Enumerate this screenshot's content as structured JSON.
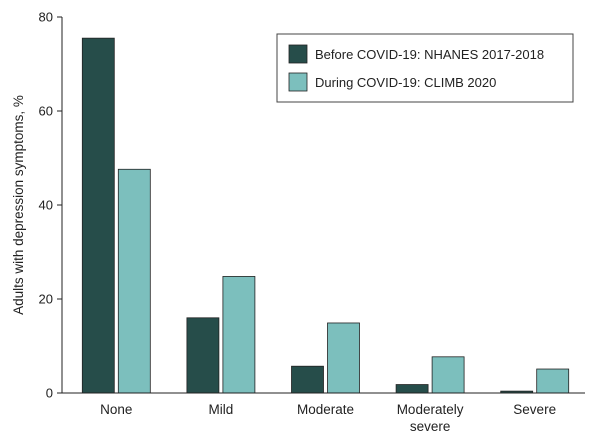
{
  "chart_data": {
    "type": "bar",
    "title": "",
    "xlabel": "",
    "ylabel": "Adults with depression symptoms, %",
    "ylim": [
      0,
      80
    ],
    "yticks": [
      0,
      20,
      40,
      60,
      80
    ],
    "grid": false,
    "legend_position": "top-right",
    "categories": [
      "None",
      "Mild",
      "Moderate",
      "Moderately severe",
      "Severe"
    ],
    "category_lines": [
      [
        "None"
      ],
      [
        "Mild"
      ],
      [
        "Moderate"
      ],
      [
        "Moderately",
        "severe"
      ],
      [
        "Severe"
      ]
    ],
    "series": [
      {
        "name": "Before COVID-19: NHANES 2017-2018",
        "color": "#264d4a",
        "values": [
          75.5,
          16.0,
          5.7,
          1.8,
          0.4
        ]
      },
      {
        "name": "During COVID-19: CLIMB 2020",
        "color": "#7cbfbd",
        "values": [
          47.6,
          24.8,
          14.9,
          7.7,
          5.1
        ]
      }
    ]
  }
}
